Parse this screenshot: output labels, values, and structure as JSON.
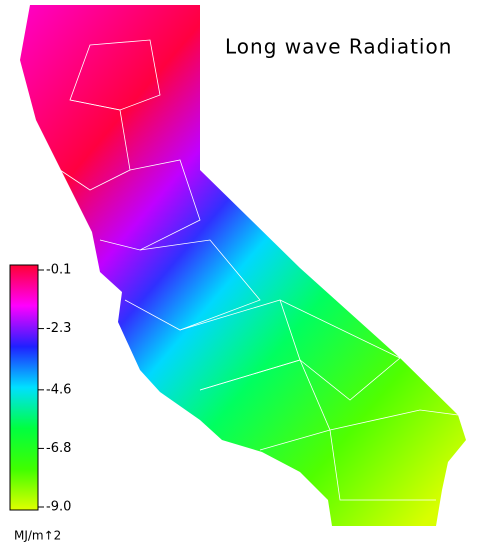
{
  "title": "Long wave Radiation",
  "colorbar": {
    "unit": "MJ/m↑2",
    "range": [
      -0.1,
      -9
    ],
    "ticks": [
      -0.1,
      -2.3,
      -4.6,
      -6.8,
      {
        "value": -9,
        "label": "-9.0"
      }
    ],
    "colors": [
      "#ff0033",
      "#ff00ff",
      "#2020ff",
      "#00e0ff",
      "#00ff40",
      "#40ff00",
      "#e0ff00"
    ]
  }
}
